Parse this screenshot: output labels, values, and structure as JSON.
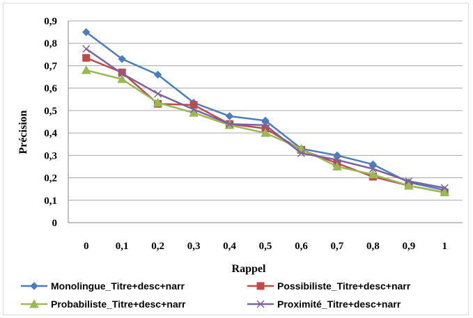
{
  "chart_data": {
    "type": "line",
    "title": "",
    "xlabel": "Rappel",
    "ylabel": "Précision",
    "x": [
      "0",
      "0,1",
      "0,2",
      "0,3",
      "0,4",
      "0,5",
      "0,6",
      "0,7",
      "0,8",
      "0,9",
      "1"
    ],
    "ylim": [
      0,
      0.9
    ],
    "yticks": [
      "0",
      "0,1",
      "0,2",
      "0,3",
      "0,4",
      "0,5",
      "0,6",
      "0,7",
      "0,8",
      "0,9"
    ],
    "grid": "horizontal",
    "legend_position": "bottom",
    "series": [
      {
        "name": "Monolingue_Titre+desc+narr",
        "color": "#4a7ebb",
        "marker": "diamond",
        "values": [
          0.85,
          0.73,
          0.66,
          0.535,
          0.475,
          0.455,
          0.33,
          0.3,
          0.26,
          0.18,
          0.145
        ]
      },
      {
        "name": "Possibiliste_Titre+desc+narr",
        "color": "#be4b48",
        "marker": "square",
        "values": [
          0.735,
          0.67,
          0.53,
          0.525,
          0.44,
          0.42,
          0.325,
          0.265,
          0.205,
          0.165,
          0.135
        ]
      },
      {
        "name": "Probabiliste_Titre+desc+narr",
        "color": "#98b954",
        "marker": "triangle",
        "values": [
          0.68,
          0.64,
          0.535,
          0.49,
          0.435,
          0.4,
          0.33,
          0.25,
          0.215,
          0.165,
          0.135
        ]
      },
      {
        "name": "Proximité_Titre+desc+narr",
        "color": "#7d60a0",
        "marker": "x",
        "values": [
          0.775,
          0.665,
          0.575,
          0.505,
          0.44,
          0.435,
          0.31,
          0.28,
          0.24,
          0.185,
          0.155
        ]
      }
    ]
  }
}
